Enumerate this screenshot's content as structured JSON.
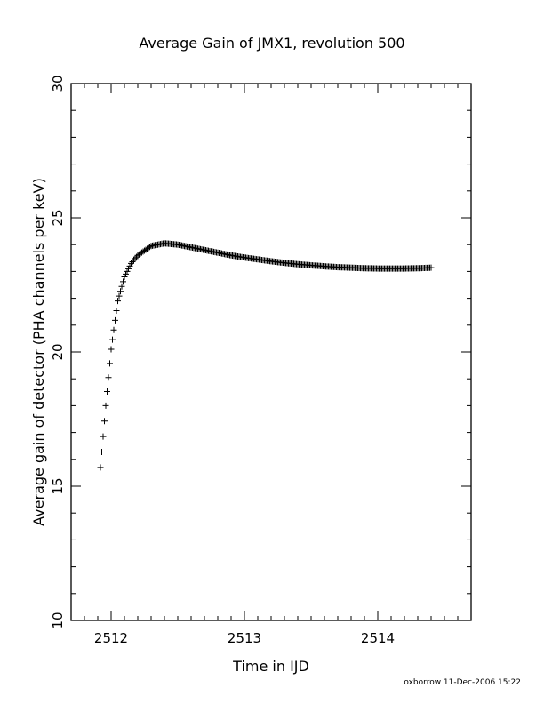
{
  "chart_data": {
    "type": "scatter",
    "title": "Average Gain of JMX1, revolution 500",
    "xlabel": "Time in IJD",
    "ylabel": "Average gain of detector (PHA channels per keV)",
    "xlim": [
      2511.7,
      2514.7
    ],
    "ylim": [
      10,
      30
    ],
    "x_ticks": [
      2512,
      2513,
      2514
    ],
    "y_ticks": [
      10,
      15,
      20,
      25,
      30
    ],
    "x_minor_step": 0.1,
    "y_minor_step": 1,
    "marker": "plus",
    "grid": false,
    "legend": "none",
    "series": [
      {
        "x": [
          2511.92,
          2511.96,
          2512.0,
          2512.05,
          2512.1,
          2512.15,
          2512.2,
          2512.3,
          2512.4,
          2512.5,
          2512.6,
          2512.7,
          2512.8,
          2512.9,
          2513.0,
          2513.1,
          2513.2,
          2513.3,
          2513.4,
          2513.5,
          2513.6,
          2513.7,
          2513.8,
          2513.9,
          2514.0,
          2514.1,
          2514.2,
          2514.3,
          2514.4
        ],
        "y": [
          15.7,
          18.0,
          20.1,
          21.9,
          22.8,
          23.3,
          23.6,
          23.95,
          24.05,
          24.0,
          23.9,
          23.8,
          23.7,
          23.6,
          23.52,
          23.45,
          23.38,
          23.32,
          23.27,
          23.23,
          23.19,
          23.16,
          23.14,
          23.12,
          23.11,
          23.11,
          23.11,
          23.12,
          23.14
        ]
      }
    ]
  },
  "footer": "oxborrow 11-Dec-2006 15:22"
}
